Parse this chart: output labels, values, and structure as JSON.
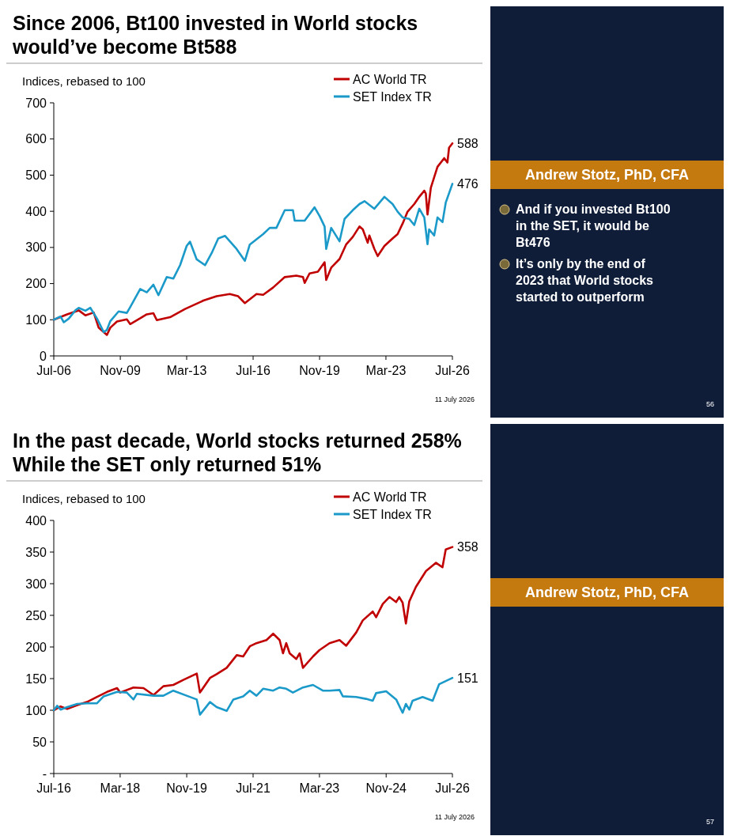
{
  "chart_data": [
    {
      "type": "line",
      "title": "Since 2006, Bt100 invested in World stocks would’ve become Bt588",
      "ylabel": "Indices, rebased to 100",
      "legend": "top right",
      "xlim": [
        "2006-07",
        "2026-07"
      ],
      "xticks": [
        {
          "value": "2006-07",
          "label": "Jul-06"
        },
        {
          "value": "2009-11",
          "label": "Nov-09"
        },
        {
          "value": "2013-03",
          "label": "Mar-13"
        },
        {
          "value": "2016-07",
          "label": "Jul-16"
        },
        {
          "value": "2019-11",
          "label": "Nov-19"
        },
        {
          "value": "2023-03",
          "label": "Mar-23"
        },
        {
          "value": "2026-07",
          "label": "Jul-26"
        }
      ],
      "ylim": [
        0,
        700
      ],
      "yticks": [
        0,
        100,
        200,
        300,
        400,
        500,
        600,
        700
      ],
      "series": [
        {
          "name": "AC World TR",
          "color": "#c00000",
          "x": [
            "2006-07",
            "2007-03",
            "2007-10",
            "2008-02",
            "2008-07",
            "2008-10",
            "2009-03",
            "2009-05",
            "2009-09",
            "2010-03",
            "2010-05",
            "2010-11",
            "2011-03",
            "2011-07",
            "2011-09",
            "2012-05",
            "2013-02",
            "2014-01",
            "2014-09",
            "2015-05",
            "2015-10",
            "2016-02",
            "2016-09",
            "2017-01",
            "2017-07",
            "2018-02",
            "2018-09",
            "2019-01",
            "2019-02",
            "2019-05",
            "2019-10",
            "2020-02",
            "2020-03",
            "2020-06",
            "2020-11",
            "2021-03",
            "2021-07",
            "2021-11",
            "2022-01",
            "2022-04",
            "2022-05",
            "2022-08",
            "2022-10",
            "2023-02",
            "2023-07",
            "2023-10",
            "2024-01",
            "2024-04",
            "2024-08",
            "2024-11",
            "2025-02",
            "2025-03",
            "2025-04",
            "2025-06",
            "2025-10",
            "2026-02",
            "2026-04",
            "2026-05",
            "2026-07"
          ],
          "values": [
            100,
            115,
            126,
            112,
            120,
            78,
            58,
            78,
            95,
            101,
            88,
            104,
            115,
            118,
            99,
            107,
            130,
            153,
            165,
            171,
            165,
            146,
            171,
            169,
            189,
            218,
            222,
            218,
            202,
            228,
            233,
            259,
            210,
            244,
            268,
            308,
            329,
            358,
            350,
            313,
            333,
            296,
            276,
            304,
            325,
            337,
            366,
            399,
            420,
            440,
            457,
            449,
            391,
            465,
            523,
            547,
            535,
            576,
            588
          ]
        },
        {
          "name": "SET Index TR",
          "color": "#1b9ac9",
          "x": [
            "2006-07",
            "2006-11",
            "2007-01",
            "2007-04",
            "2007-08",
            "2007-10",
            "2008-02",
            "2008-05",
            "2008-09",
            "2009-01",
            "2009-03",
            "2009-05",
            "2009-10",
            "2010-03",
            "2010-05",
            "2010-11",
            "2011-03",
            "2011-07",
            "2011-10",
            "2012-03",
            "2012-07",
            "2012-11",
            "2013-03",
            "2013-05",
            "2013-09",
            "2014-02",
            "2014-06",
            "2014-10",
            "2015-02",
            "2015-09",
            "2016-02",
            "2016-05",
            "2017-01",
            "2017-05",
            "2017-09",
            "2018-02",
            "2018-07",
            "2018-08",
            "2019-02",
            "2019-08",
            "2019-11",
            "2020-02",
            "2020-03",
            "2020-06",
            "2020-11",
            "2021-02",
            "2021-07",
            "2021-11",
            "2022-02",
            "2022-08",
            "2023-02",
            "2023-07",
            "2023-10",
            "2024-01",
            "2024-05",
            "2024-08",
            "2024-11",
            "2025-02",
            "2025-04",
            "2025-05",
            "2025-08",
            "2025-10",
            "2026-01",
            "2026-03",
            "2026-07"
          ],
          "values": [
            100,
            109,
            93,
            103,
            126,
            133,
            125,
            133,
            103,
            66,
            72,
            96,
            123,
            119,
            135,
            185,
            176,
            197,
            168,
            218,
            214,
            251,
            304,
            316,
            267,
            251,
            284,
            325,
            332,
            296,
            263,
            308,
            337,
            354,
            354,
            403,
            403,
            374,
            374,
            411,
            387,
            358,
            296,
            354,
            317,
            379,
            403,
            420,
            428,
            407,
            440,
            420,
            399,
            383,
            379,
            362,
            407,
            383,
            309,
            350,
            333,
            383,
            370,
            424,
            476
          ]
        }
      ],
      "annotations": [
        {
          "text": "588",
          "x": "2026-07",
          "y": 588
        },
        {
          "text": "476",
          "x": "2026-07",
          "y": 476
        },
        "Andrew Stotz, PhD, CFA",
        "And if you invested Bt100 in the SET, it would be Bt476",
        "It’s only by the end of 2023 that World stocks started to outperform",
        "11 July 2026",
        "56"
      ]
    },
    {
      "type": "line",
      "title": "In the past decade, World stocks returned 258%\nWhile the SET only returned 51%",
      "ylabel": "Indices, rebased to 100",
      "legend": "top right",
      "xlim": [
        "2016-07",
        "2026-07"
      ],
      "xticks": [
        {
          "value": "2016-07",
          "label": "Jul-16"
        },
        {
          "value": "2018-03",
          "label": "Mar-18"
        },
        {
          "value": "2019-11",
          "label": "Nov-19"
        },
        {
          "value": "2021-07",
          "label": "Jul-21"
        },
        {
          "value": "2023-03",
          "label": "Mar-23"
        },
        {
          "value": "2024-11",
          "label": "Nov-24"
        },
        {
          "value": "2026-07",
          "label": "Jul-26"
        }
      ],
      "ylim": [
        0,
        400
      ],
      "yticks": [
        {
          "value": 0,
          "label": "-"
        },
        50,
        100,
        150,
        200,
        250,
        300,
        350,
        400
      ],
      "series": [
        {
          "name": "AC World TR",
          "color": "#c00000",
          "x": [
            "2016-07",
            "2016-09",
            "2016-11",
            "2017-02",
            "2017-05",
            "2017-08",
            "2017-11",
            "2018-02",
            "2018-03",
            "2018-07",
            "2018-10",
            "2019-01",
            "2019-04",
            "2019-07",
            "2019-10",
            "2020-02",
            "2020-03",
            "2020-06",
            "2020-08",
            "2020-11",
            "2021-02",
            "2021-04",
            "2021-06",
            "2021-08",
            "2021-11",
            "2022-01",
            "2022-03",
            "2022-04",
            "2022-05",
            "2022-06",
            "2022-08",
            "2022-09",
            "2022-10",
            "2023-01",
            "2023-03",
            "2023-06",
            "2023-09",
            "2023-11",
            "2024-02",
            "2024-04",
            "2024-07",
            "2024-08",
            "2024-10",
            "2024-12",
            "2025-02",
            "2025-03",
            "2025-04",
            "2025-05",
            "2025-06",
            "2025-08",
            "2025-11",
            "2026-02",
            "2026-04",
            "2026-05",
            "2026-07"
          ],
          "values": [
            100,
            106,
            102,
            108,
            113,
            121,
            129,
            135,
            128,
            136,
            135,
            124,
            138,
            140,
            148,
            158,
            128,
            151,
            157,
            167,
            187,
            185,
            201,
            206,
            211,
            221,
            211,
            190,
            206,
            190,
            181,
            190,
            167,
            185,
            195,
            206,
            211,
            202,
            223,
            242,
            256,
            247,
            268,
            279,
            271,
            279,
            270,
            237,
            272,
            295,
            320,
            333,
            326,
            354,
            358
          ]
        },
        {
          "name": "SET Index TR",
          "color": "#1b9ac9",
          "x": [
            "2016-07",
            "2016-08",
            "2016-09",
            "2016-11",
            "2017-02",
            "2017-05",
            "2017-08",
            "2017-10",
            "2018-02",
            "2018-05",
            "2018-07",
            "2018-08",
            "2019-01",
            "2019-04",
            "2019-07",
            "2019-11",
            "2020-02",
            "2020-03",
            "2020-06",
            "2020-08",
            "2020-11",
            "2021-01",
            "2021-04",
            "2021-06",
            "2021-08",
            "2021-10",
            "2022-01",
            "2022-03",
            "2022-05",
            "2022-07",
            "2022-10",
            "2023-01",
            "2023-04",
            "2023-06",
            "2023-09",
            "2023-10",
            "2024-02",
            "2024-05",
            "2024-07",
            "2024-08",
            "2024-11",
            "2025-02",
            "2025-04",
            "2025-05",
            "2025-06",
            "2025-07",
            "2025-10",
            "2026-01",
            "2026-03",
            "2026-07"
          ],
          "values": [
            100,
            107,
            101,
            105,
            110,
            111,
            111,
            122,
            129,
            128,
            117,
            126,
            123,
            123,
            131,
            123,
            117,
            93,
            113,
            105,
            99,
            117,
            122,
            131,
            123,
            134,
            131,
            136,
            134,
            128,
            136,
            140,
            131,
            131,
            132,
            122,
            121,
            118,
            115,
            127,
            130,
            117,
            96,
            110,
            101,
            115,
            121,
            115,
            141,
            151
          ]
        }
      ],
      "annotations": [
        {
          "text": "358",
          "x": "2026-07",
          "y": 358
        },
        {
          "text": "151",
          "x": "2026-07",
          "y": 151
        },
        "Andrew Stotz, PhD, CFA",
        "11 July 2026",
        "57"
      ]
    }
  ]
}
